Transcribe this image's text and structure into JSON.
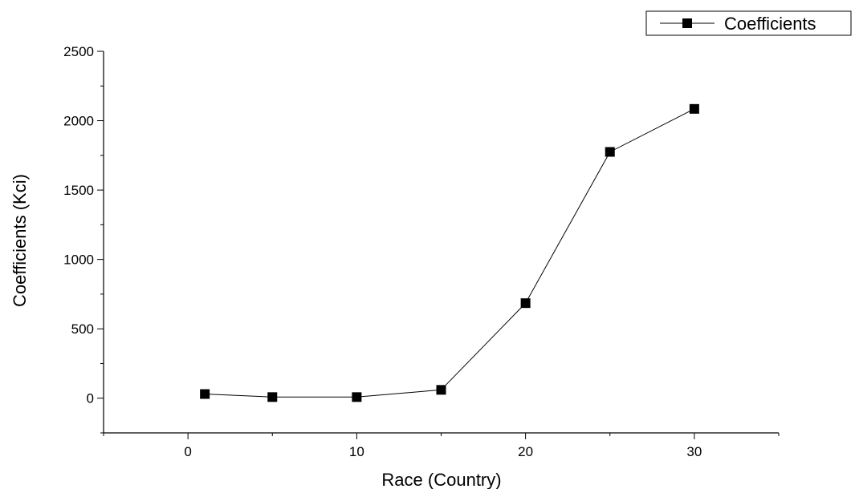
{
  "chart_data": {
    "type": "line",
    "xlabel": "Race (Country)",
    "ylabel": "Coefficients (Kci)",
    "xlim": [
      -5,
      35
    ],
    "ylim": [
      -250,
      2500
    ],
    "x_ticks": [
      0,
      10,
      20,
      30
    ],
    "y_ticks": [
      0,
      500,
      1000,
      1500,
      2000,
      2500
    ],
    "grid": false,
    "legend_position": "top-right",
    "series": [
      {
        "name": "Coefficients",
        "marker": "square",
        "color": "#000000",
        "x": [
          1,
          5,
          10,
          15,
          20,
          25,
          30
        ],
        "y": [
          30,
          8,
          8,
          60,
          685,
          1775,
          2085
        ]
      }
    ]
  }
}
